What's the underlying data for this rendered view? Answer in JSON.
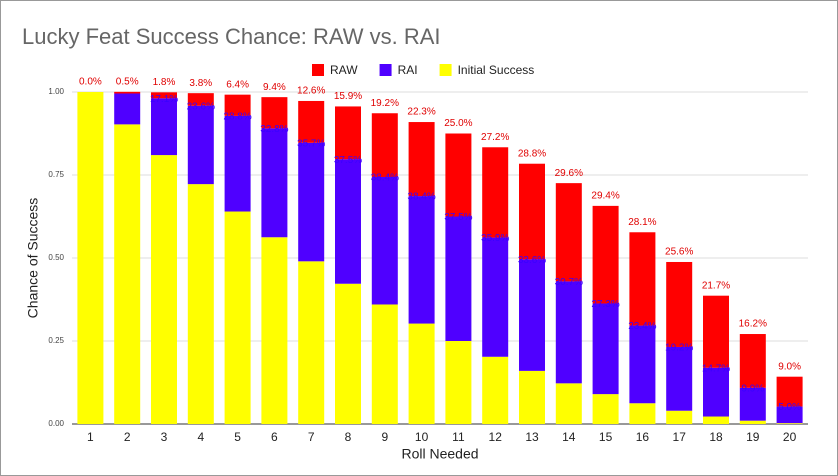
{
  "chart_data": {
    "type": "stacked_bar",
    "title": "Lucky Feat Success Chance: RAW vs. RAI",
    "x_label": "Roll Needed",
    "y_label": "Chance of Success",
    "categories": [
      "1",
      "2",
      "3",
      "4",
      "5",
      "6",
      "7",
      "8",
      "9",
      "10",
      "11",
      "12",
      "13",
      "14",
      "15",
      "16",
      "17",
      "18",
      "19",
      "20"
    ],
    "series": [
      {
        "name": "RAW",
        "color": "#ff0000",
        "values": [
          0.0,
          0.005,
          0.018,
          0.038,
          0.064,
          0.094,
          0.126,
          0.159,
          0.192,
          0.223,
          0.25,
          0.272,
          0.288,
          0.296,
          0.294,
          0.281,
          0.256,
          0.217,
          0.162,
          0.09
        ],
        "value_labels": [
          "0.0%",
          "0.5%",
          "1.8%",
          "3.8%",
          "6.4%",
          "9.4%",
          "12.6%",
          "15.9%",
          "19.2%",
          "22.3%",
          "25.0%",
          "27.2%",
          "28.8%",
          "29.6%",
          "29.4%",
          "28.1%",
          "25.6%",
          "21.7%",
          "16.2%",
          "9.0%"
        ]
      },
      {
        "name": "RAI",
        "color": "#4f00ff",
        "values": [
          0,
          0.093,
          0.171,
          0.236,
          0.288,
          0.328,
          0.357,
          0.375,
          0.384,
          0.384,
          0.375,
          0.359,
          0.336,
          0.307,
          0.273,
          0.234,
          0.192,
          0.147,
          0.099,
          0.05
        ],
        "value_labels": [
          null,
          null,
          "17.1%",
          "23.6%",
          "28.8%",
          "32.8%",
          "35.7%",
          "37.5%",
          "38.4%",
          "38.4%",
          "37.5%",
          "35.9%",
          "33.6%",
          "30.7%",
          "27.3%",
          "23.4%",
          "19.2%",
          "14.7%",
          "9.9%",
          "5.0%"
        ]
      },
      {
        "name": "Initial Success",
        "color": "#ffff00",
        "values": [
          1.0,
          0.9025,
          0.81,
          0.7225,
          0.64,
          0.5625,
          0.49,
          0.4225,
          0.36,
          0.3025,
          0.25,
          0.2025,
          0.16,
          0.1225,
          0.09,
          0.0625,
          0.04,
          0.0225,
          0.01,
          0.0025
        ]
      }
    ],
    "ylim": [
      0,
      1
    ],
    "yticks": [
      {
        "value": 0,
        "label": "0.00"
      },
      {
        "value": 0.25,
        "label": "0.25"
      },
      {
        "value": 0.5,
        "label": "0.50"
      },
      {
        "value": 0.75,
        "label": "0.75"
      },
      {
        "value": 1,
        "label": "1.00"
      }
    ],
    "grid": true,
    "legend": "top"
  }
}
